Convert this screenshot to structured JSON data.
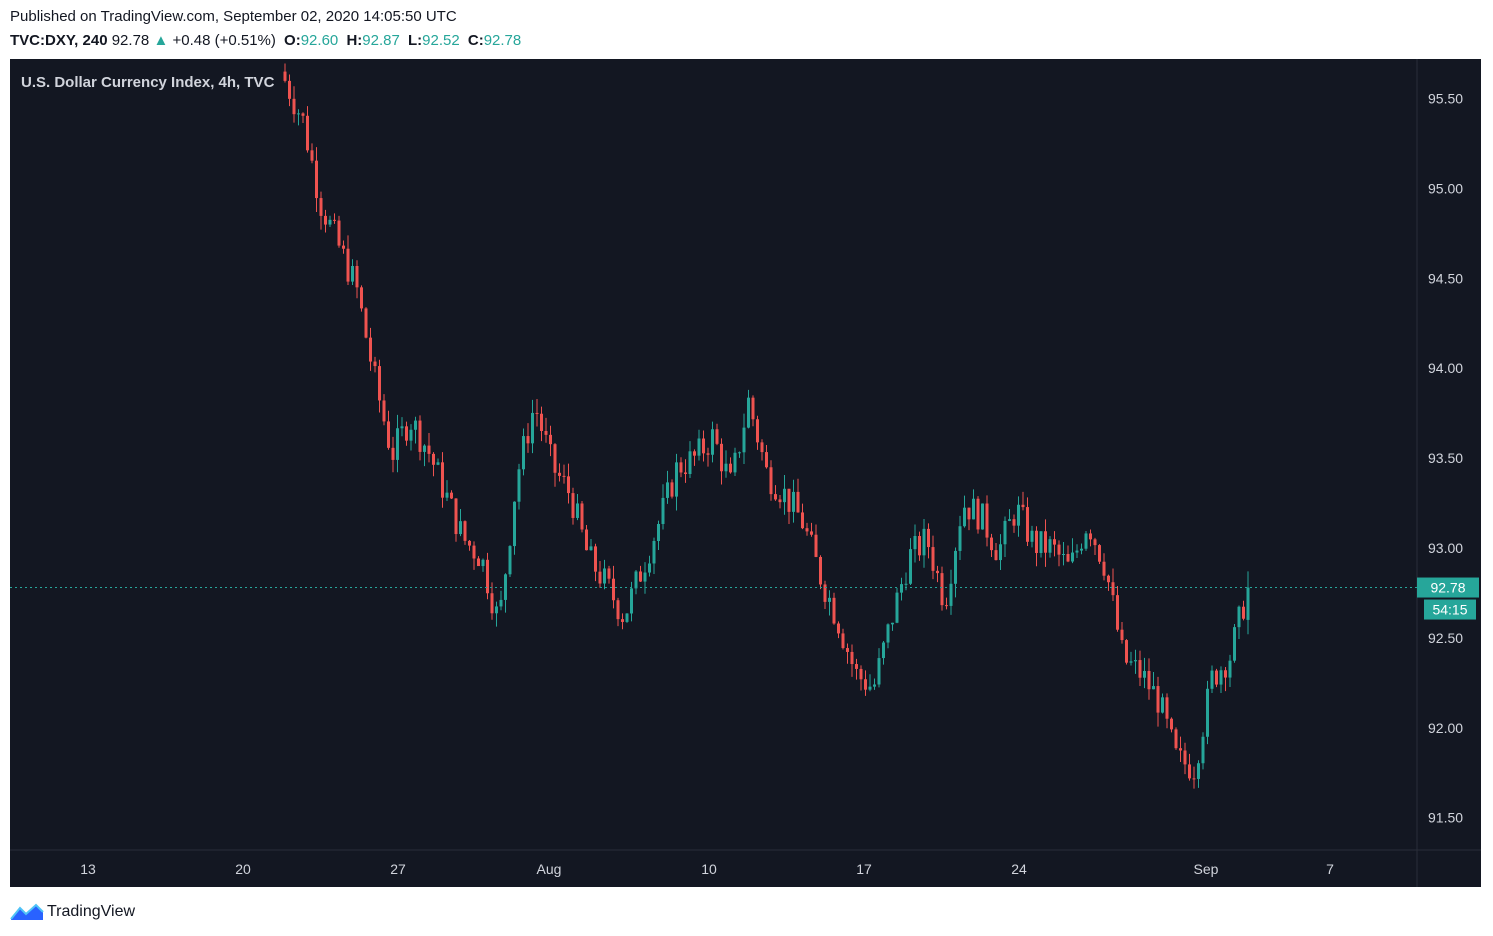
{
  "header": {
    "published": "Published on TradingView.com, September 02, 2020 14:05:50 UTC",
    "symbol": "TVC:DXY, 240",
    "last": "92.78",
    "change": "+0.48 (+0.51%)",
    "open_label": "O:",
    "open": "92.60",
    "high_label": "H:",
    "high": "92.87",
    "low_label": "L:",
    "low": "92.52",
    "close_label": "C:",
    "close": "92.78"
  },
  "footer": {
    "brand": "TradingView",
    "logo_icon": "tradingview-logo-icon"
  },
  "colors": {
    "background": "#131722",
    "up": "#26a69a",
    "down": "#ef5350",
    "axis_text": "#d1d4dc"
  },
  "chart_data": {
    "type": "candlestick",
    "title": "U.S. Dollar Currency Index, 4h, TVC",
    "xlabel": "",
    "ylabel": "",
    "ylim": [
      91.32,
      95.72
    ],
    "y_ticks": [
      "95.50",
      "95.00",
      "94.50",
      "94.00",
      "93.50",
      "93.00",
      "92.50",
      "92.00",
      "91.50"
    ],
    "x_ticks": [
      "13",
      "20",
      "27",
      "Aug",
      "10",
      "17",
      "24",
      "Sep",
      "7"
    ],
    "last_price_label": "92.78",
    "countdown_label": "54:15",
    "last_price": 92.78,
    "grid": false,
    "ohlc_close_path": [
      95.6,
      95.38,
      94.92,
      94.68,
      94.45,
      93.95,
      93.52,
      93.72,
      93.55,
      93.3,
      93.05,
      92.95,
      92.58,
      93.4,
      93.8,
      93.45,
      93.3,
      92.95,
      92.8,
      92.62,
      92.88,
      93.15,
      93.45,
      93.5,
      93.62,
      93.35,
      93.82,
      93.42,
      93.3,
      93.15,
      92.85,
      92.6,
      92.3,
      92.22,
      92.6,
      92.95,
      93.05,
      92.7,
      93.25,
      93.18,
      92.98,
      93.22,
      93.02,
      93.0,
      92.88,
      93.15,
      92.9,
      92.38,
      92.3,
      92.15,
      91.82,
      91.78,
      92.28,
      92.4,
      92.78
    ],
    "candle_count": 215
  }
}
